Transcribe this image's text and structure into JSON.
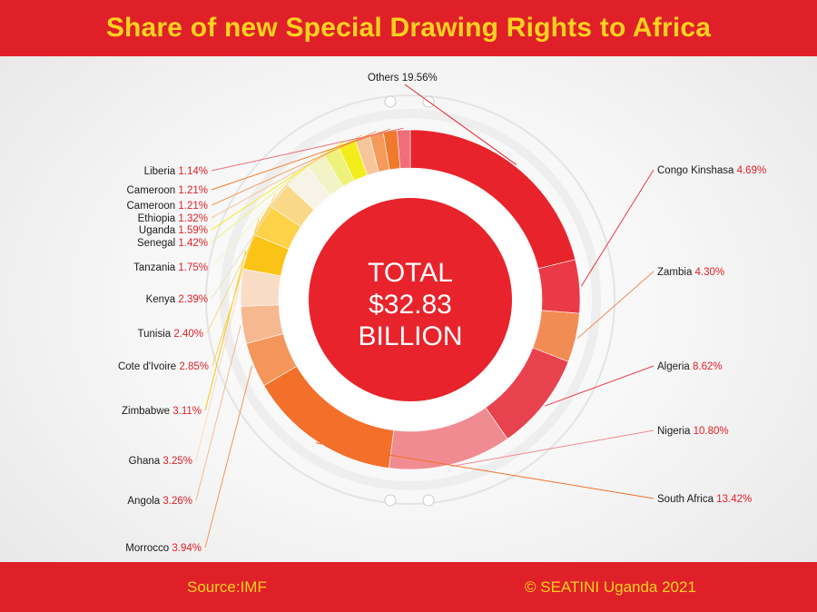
{
  "title": "Share of new Special Drawing Rights to Africa",
  "center": {
    "line1": "TOTAL",
    "line2": "$32.83",
    "line3": "BILLION"
  },
  "footer": {
    "source": "Source:IMF",
    "credit": "© SEATINI Uganda 2021"
  },
  "colors": {
    "header_bg": "#e02028",
    "title": "#ffd21f",
    "value_text": "#e02028",
    "center_circle": "#e8232b"
  },
  "chart_data": {
    "type": "donut",
    "title": "Share of new Special Drawing Rights to Africa",
    "total_label": "TOTAL $32.83 BILLION",
    "unit": "%",
    "slices": [
      {
        "label": "Others",
        "value": 19.56,
        "value_text": "19.56%",
        "color": "#e8232b"
      },
      {
        "label": "Congo Kinshasa",
        "value": 4.69,
        "value_text": "4.69%",
        "color": "#ea3a47"
      },
      {
        "label": "Zambia",
        "value": 4.3,
        "value_text": "4.30%",
        "color": "#f38b55"
      },
      {
        "label": "Algeria",
        "value": 8.62,
        "value_text": "8.62%",
        "color": "#e8424e"
      },
      {
        "label": "Nigeria",
        "value": 10.8,
        "value_text": "10.80%",
        "color": "#f08b91"
      },
      {
        "label": "South Africa",
        "value": 13.42,
        "value_text": "13.42%",
        "color": "#f2702a"
      },
      {
        "label": "Morrocco",
        "value": 3.94,
        "value_text": "3.94%",
        "color": "#f4955a"
      },
      {
        "label": "Angola",
        "value": 3.26,
        "value_text": "3.26%",
        "color": "#f6b98f"
      },
      {
        "label": "Ghana",
        "value": 3.25,
        "value_text": "3.25%",
        "color": "#f8dcc4"
      },
      {
        "label": "Zimbabwe",
        "value": 3.11,
        "value_text": "3.11%",
        "color": "#fbc316"
      },
      {
        "label": "Cote d'Ivoire",
        "value": 2.85,
        "value_text": "2.85%",
        "color": "#fdd247"
      },
      {
        "label": "Tunisia",
        "value": 2.4,
        "value_text": "2.40%",
        "color": "#f9d987"
      },
      {
        "label": "Kenya",
        "value": 2.39,
        "value_text": "2.39%",
        "color": "#f7f3e6"
      },
      {
        "label": "Tanzania",
        "value": 1.75,
        "value_text": "1.75%",
        "color": "#f2f3c6"
      },
      {
        "label": "Senegal",
        "value": 1.42,
        "value_text": "1.42%",
        "color": "#eef27a"
      },
      {
        "label": "Uganda",
        "value": 1.59,
        "value_text": "1.59%",
        "color": "#f4ed1c"
      },
      {
        "label": "Ethiopia",
        "value": 1.32,
        "value_text": "1.32%",
        "color": "#f7c59a"
      },
      {
        "label": "Cameroon",
        "value": 1.21,
        "value_text": "1.21%",
        "color": "#f59a5a"
      },
      {
        "label": "Cameroon",
        "value": 1.21,
        "value_text": "1.21%",
        "color": "#f07a2c"
      },
      {
        "label": "Liberia",
        "value": 1.14,
        "value_text": "1.14%",
        "color": "#f06d7a"
      }
    ]
  }
}
